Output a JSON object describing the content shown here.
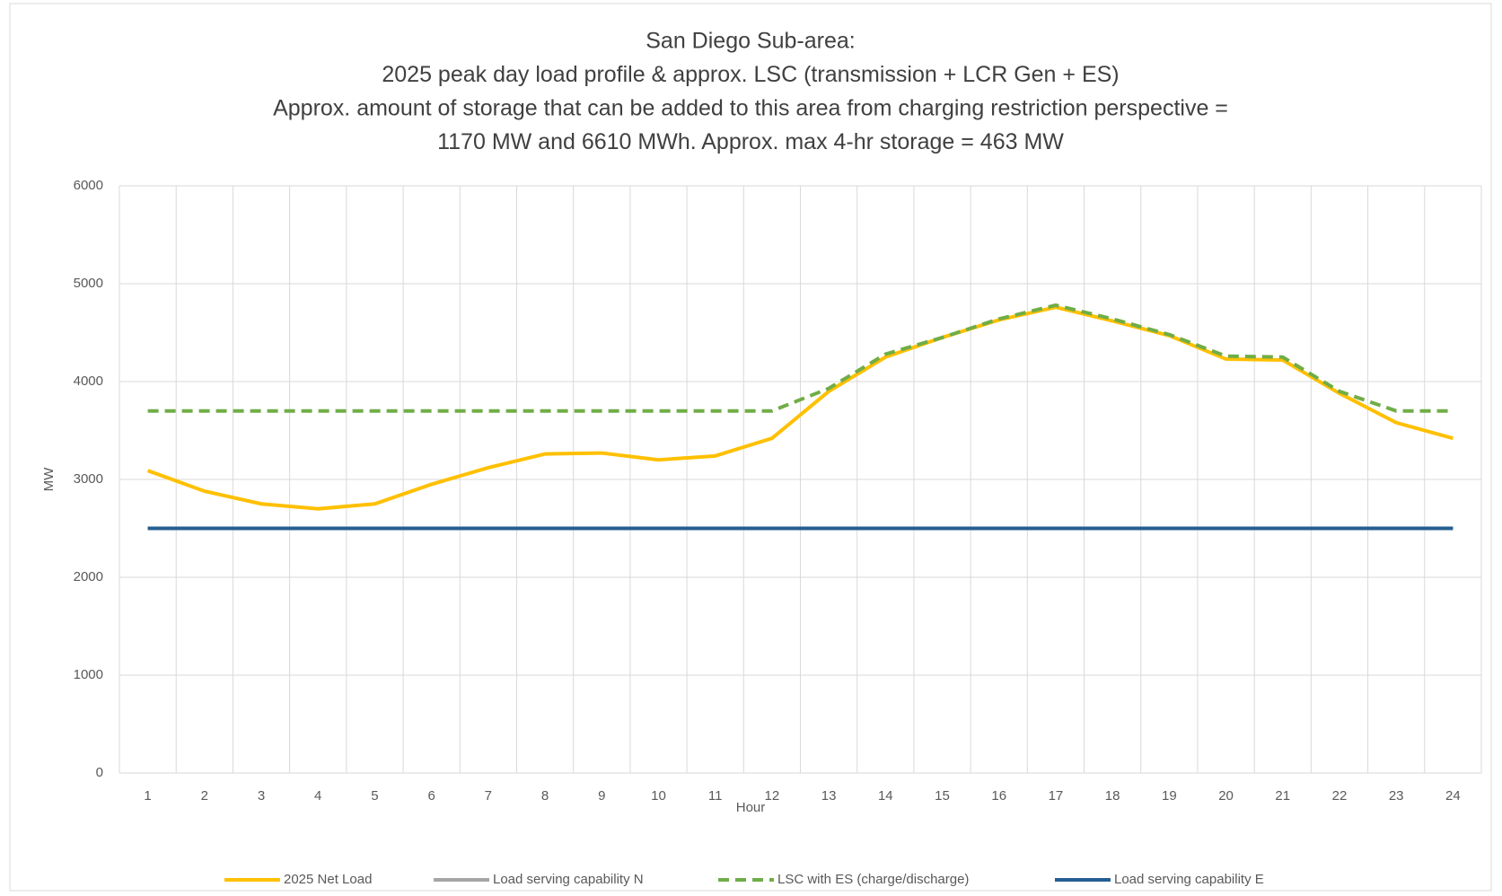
{
  "chart_data": {
    "type": "line",
    "title": [
      "San Diego Sub-area:",
      "2025 peak day load profile & approx. LSC (transmission + LCR Gen + ES)",
      "Approx. amount of storage that can be added to this area from charging restriction perspective =",
      "1170 MW and 6610 MWh. Approx. max 4-hr storage = 463 MW"
    ],
    "x_label": "Hour",
    "y_label": "MW",
    "categories": [
      "1",
      "2",
      "3",
      "4",
      "5",
      "6",
      "7",
      "8",
      "9",
      "10",
      "11",
      "12",
      "13",
      "14",
      "15",
      "16",
      "17",
      "18",
      "19",
      "20",
      "21",
      "22",
      "23",
      "24"
    ],
    "ylim": [
      0,
      6000
    ],
    "yticks": [
      0,
      1000,
      2000,
      3000,
      4000,
      5000,
      6000
    ],
    "grid": true,
    "series": [
      {
        "name": "2025 Net Load",
        "color": "#ffc000",
        "dashed": false,
        "values": [
          3090,
          2880,
          2750,
          2700,
          2750,
          2950,
          3120,
          3260,
          3270,
          3200,
          3240,
          3420,
          3900,
          4250,
          4450,
          4630,
          4760,
          4620,
          4470,
          4230,
          4220,
          3880,
          3580,
          3420
        ]
      },
      {
        "name": "Load serving capability N",
        "color": "#a5a5a5",
        "dashed": false,
        "values": [
          2500,
          2500,
          2500,
          2500,
          2500,
          2500,
          2500,
          2500,
          2500,
          2500,
          2500,
          2500,
          2500,
          2500,
          2500,
          2500,
          2500,
          2500,
          2500,
          2500,
          2500,
          2500,
          2500,
          2500
        ]
      },
      {
        "name": "LSC with ES (charge/discharge)",
        "color": "#70ad47",
        "dashed": true,
        "values": [
          3700,
          3700,
          3700,
          3700,
          3700,
          3700,
          3700,
          3700,
          3700,
          3700,
          3700,
          3700,
          3930,
          4280,
          4450,
          4640,
          4780,
          4640,
          4480,
          4260,
          4250,
          3900,
          3700,
          3700
        ]
      },
      {
        "name": "Load serving capability E",
        "color": "#255e91",
        "dashed": false,
        "values": [
          2500,
          2500,
          2500,
          2500,
          2500,
          2500,
          2500,
          2500,
          2500,
          2500,
          2500,
          2500,
          2500,
          2500,
          2500,
          2500,
          2500,
          2500,
          2500,
          2500,
          2500,
          2500,
          2500,
          2500
        ]
      }
    ]
  }
}
